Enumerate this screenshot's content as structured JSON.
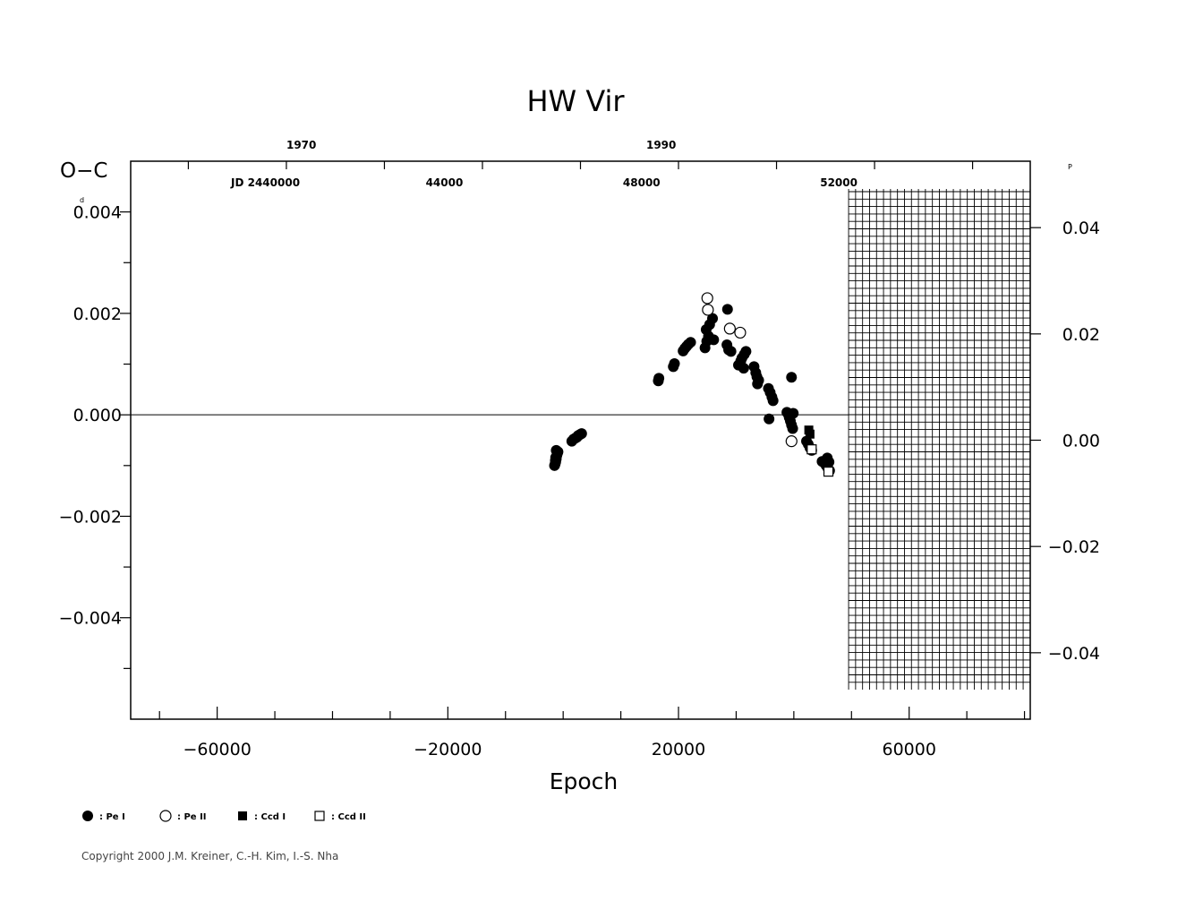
{
  "chart_data": {
    "type": "scatter",
    "title": "HW  Vir",
    "ylabel": "O−C",
    "ylabel_unit": "d",
    "y2_unit": "P",
    "xlabel": "Epoch",
    "xlim": [
      -75000,
      81000
    ],
    "ylim": [
      -0.006,
      0.005
    ],
    "y2lim": [
      -0.0525,
      0.0525
    ],
    "x_ticks": [
      -60000,
      -20000,
      20000,
      60000
    ],
    "x_tick_labels": [
      "−60000",
      "−20000",
      "20000",
      "60000"
    ],
    "y_ticks": [
      0.004,
      0.002,
      0.0,
      -0.002,
      -0.004
    ],
    "y_tick_labels": [
      "0.004",
      "0.002",
      "0.000",
      "−0.002",
      "−0.004"
    ],
    "y2_ticks": [
      0.04,
      0.02,
      0.0,
      -0.02,
      -0.04
    ],
    "y2_tick_labels": [
      "0.04",
      "0.02",
      "0.00",
      "−0.02",
      "−0.04"
    ],
    "top_year_ticks": [
      {
        "label": "1970",
        "epoch": -45400
      },
      {
        "label": "1990",
        "epoch": 17000
      }
    ],
    "top_jd_prefix": "JD  2440000",
    "top_jd_ticks": [
      {
        "label": "44000",
        "epoch": -20600
      },
      {
        "label": "48000",
        "epoch": 13600
      },
      {
        "label": "52000",
        "epoch": 47800
      }
    ],
    "grid_region_start": 49500,
    "legend": [
      {
        "label": ": Pe  I",
        "marker": "filled-circle"
      },
      {
        "label": ": Pe  II",
        "marker": "open-circle"
      },
      {
        "label": ": Ccd  I",
        "marker": "filled-square"
      },
      {
        "label": ": Ccd  II",
        "marker": "open-square"
      }
    ],
    "series": [
      {
        "marker": "filled-circle",
        "points": [
          [
            -1500,
            -0.001
          ],
          [
            -1400,
            -0.00097
          ],
          [
            -1300,
            -0.00093
          ],
          [
            -1350,
            -0.0009
          ],
          [
            -1200,
            -0.00087
          ],
          [
            -1300,
            -0.00084
          ],
          [
            -1100,
            -0.0008
          ],
          [
            -1000,
            -0.00076
          ],
          [
            -900,
            -0.00073
          ],
          [
            -1200,
            -0.0007
          ],
          [
            1500,
            -0.00052
          ],
          [
            1800,
            -0.00048
          ],
          [
            2100,
            -0.00046
          ],
          [
            2400,
            -0.00044
          ],
          [
            2600,
            -0.00041
          ],
          [
            2900,
            -0.00039
          ],
          [
            3200,
            -0.00037
          ],
          [
            16500,
            0.00067
          ],
          [
            16600,
            0.00072
          ],
          [
            19100,
            0.00095
          ],
          [
            19300,
            0.00101
          ],
          [
            20800,
            0.00126
          ],
          [
            21100,
            0.00131
          ],
          [
            21400,
            0.00135
          ],
          [
            21700,
            0.00139
          ],
          [
            22100,
            0.00143
          ],
          [
            24600,
            0.00132
          ],
          [
            24900,
            0.00145
          ],
          [
            25200,
            0.00155
          ],
          [
            24800,
            0.00168
          ],
          [
            25400,
            0.00178
          ],
          [
            25900,
            0.0019
          ],
          [
            26100,
            0.00148
          ],
          [
            28500,
            0.00208
          ],
          [
            28400,
            0.00138
          ],
          [
            28700,
            0.00128
          ],
          [
            29100,
            0.00125
          ],
          [
            30400,
            0.00098
          ],
          [
            30800,
            0.00106
          ],
          [
            31000,
            0.00112
          ],
          [
            31400,
            0.00119
          ],
          [
            31700,
            0.00125
          ],
          [
            31300,
            0.00092
          ],
          [
            33100,
            0.00095
          ],
          [
            33400,
            0.00083
          ],
          [
            33600,
            0.00075
          ],
          [
            33900,
            0.00068
          ],
          [
            33700,
            0.00061
          ],
          [
            35600,
            0.00052
          ],
          [
            35900,
            0.00044
          ],
          [
            36200,
            0.00035
          ],
          [
            36400,
            0.00028
          ],
          [
            35700,
            -8e-05
          ],
          [
            38800,
            5e-05
          ],
          [
            39000,
            2e-05
          ],
          [
            39200,
            -5e-05
          ],
          [
            39400,
            -0.00012
          ],
          [
            39600,
            -0.0002
          ],
          [
            39800,
            -0.00027
          ],
          [
            39600,
            0.00074
          ],
          [
            39900,
            3e-05
          ],
          [
            42200,
            -0.00052
          ],
          [
            42500,
            -0.00058
          ],
          [
            42800,
            -0.00065
          ],
          [
            43100,
            -0.0007
          ],
          [
            44900,
            -0.00092
          ],
          [
            45300,
            -0.00095
          ],
          [
            45600,
            -0.001
          ],
          [
            45900,
            -0.00105
          ],
          [
            46200,
            -0.0011
          ],
          [
            46100,
            -0.00093
          ],
          [
            45800,
            -0.00085
          ]
        ]
      },
      {
        "marker": "open-circle",
        "points": [
          [
            25000,
            0.0023
          ],
          [
            25100,
            0.00207
          ],
          [
            28900,
            0.0017
          ],
          [
            30700,
            0.00162
          ],
          [
            39600,
            -0.00052
          ]
        ]
      },
      {
        "marker": "filled-square",
        "points": [
          [
            42600,
            -0.0003
          ],
          [
            42800,
            -0.00038
          ]
        ]
      },
      {
        "marker": "open-square",
        "points": [
          [
            43100,
            -0.00068
          ],
          [
            46000,
            -0.00112
          ]
        ]
      }
    ]
  },
  "copyright": "Copyright 2000 J.M. Kreiner, C.-H. Kim, I.-S. Nha"
}
